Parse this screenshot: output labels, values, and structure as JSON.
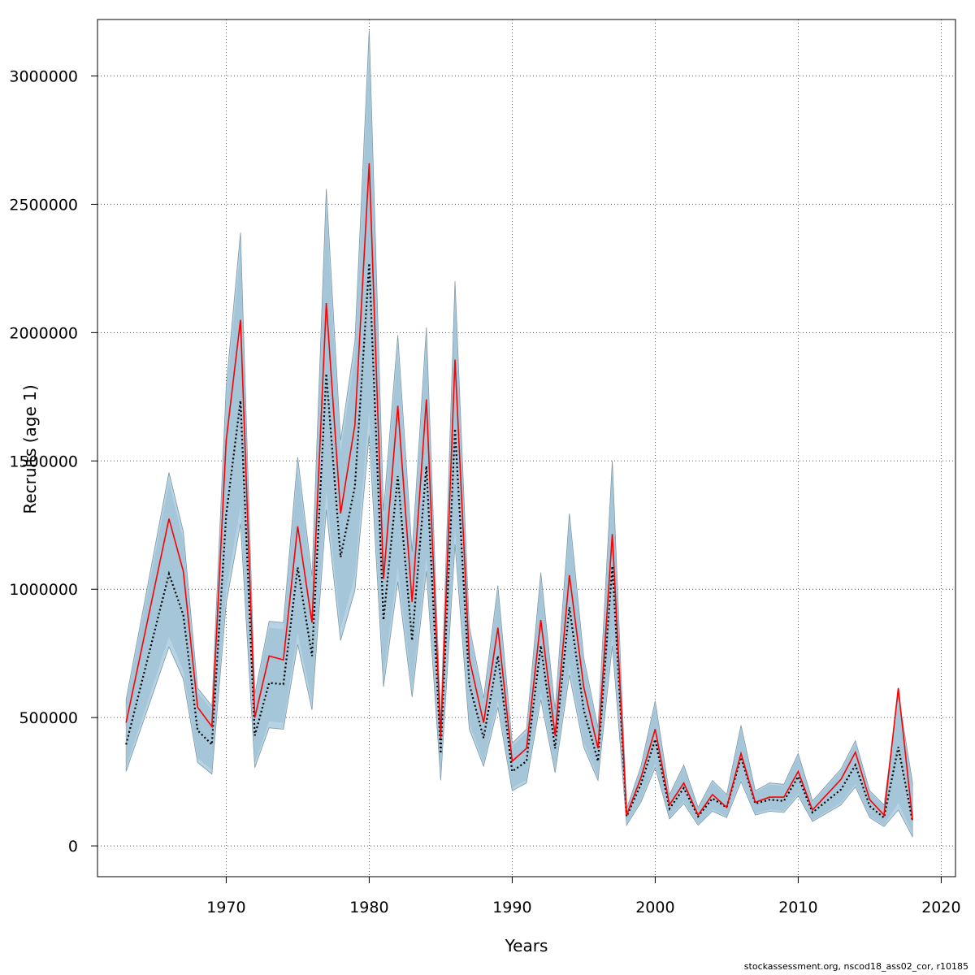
{
  "chart_data": {
    "type": "line",
    "xlabel": "Years",
    "ylabel": "Recruits (age 1)",
    "xlim": [
      1961,
      2021
    ],
    "ylim": [
      -120000,
      3220000
    ],
    "x_ticks": [
      1970,
      1980,
      1990,
      2000,
      2010,
      2020
    ],
    "y_ticks": [
      0,
      500000,
      1000000,
      1500000,
      2000000,
      2500000,
      3000000
    ],
    "grid": true,
    "colors": {
      "band_outer": "#b5d3e4",
      "band_inner": "#a4c6d8",
      "band_edge": "#7f98a6",
      "series_solid": "#ff0000",
      "series_dotted": "#000000"
    },
    "years": [
      1963,
      1966,
      1967,
      1968,
      1969,
      1970,
      1971,
      1972,
      1973,
      1974,
      1975,
      1976,
      1977,
      1978,
      1979,
      1980,
      1981,
      1982,
      1983,
      1984,
      1985,
      1986,
      1987,
      1988,
      1989,
      1990,
      1991,
      1992,
      1993,
      1994,
      1995,
      1996,
      1997,
      1998,
      1999,
      2000,
      2001,
      2002,
      2003,
      2004,
      2005,
      2006,
      2007,
      2008,
      2009,
      2010,
      2011,
      2013,
      2014,
      2015,
      2016,
      2017,
      2018
    ],
    "series": [
      {
        "style": "solid",
        "values": [
          480000,
          1275000,
          1070000,
          540000,
          465000,
          1580000,
          2050000,
          500000,
          740000,
          725000,
          1245000,
          870000,
          2115000,
          1295000,
          1640000,
          2660000,
          1040000,
          1715000,
          950000,
          1740000,
          420000,
          1895000,
          730000,
          480000,
          850000,
          330000,
          380000,
          880000,
          430000,
          1055000,
          620000,
          380000,
          1215000,
          120000,
          265000,
          455000,
          160000,
          245000,
          120000,
          200000,
          150000,
          360000,
          170000,
          190000,
          190000,
          290000,
          140000,
          260000,
          365000,
          180000,
          120000,
          615000,
          100000
        ]
      },
      {
        "style": "dotted",
        "values": [
          395000,
          1060000,
          900000,
          450000,
          395000,
          1290000,
          1735000,
          430000,
          635000,
          630000,
          1085000,
          740000,
          1840000,
          1125000,
          1400000,
          2270000,
          880000,
          1440000,
          800000,
          1480000,
          360000,
          1625000,
          630000,
          420000,
          740000,
          290000,
          330000,
          780000,
          380000,
          930000,
          530000,
          330000,
          1090000,
          115000,
          240000,
          415000,
          145000,
          225000,
          115000,
          185000,
          150000,
          345000,
          165000,
          180000,
          175000,
          270000,
          130000,
          220000,
          315000,
          155000,
          110000,
          385000,
          95000
        ]
      },
      {
        "style": "band",
        "low": [
          290000,
          775000,
          650000,
          325000,
          280000,
          945000,
          1255000,
          305000,
          460000,
          455000,
          785000,
          530000,
          1310000,
          800000,
          995000,
          1600000,
          620000,
          1030000,
          580000,
          1070000,
          255000,
          1175000,
          455000,
          310000,
          540000,
          215000,
          245000,
          570000,
          285000,
          665000,
          385000,
          255000,
          780000,
          80000,
          170000,
          305000,
          105000,
          165000,
          80000,
          135000,
          110000,
          250000,
          120000,
          135000,
          130000,
          195000,
          95000,
          160000,
          230000,
          110000,
          75000,
          140000,
          35000
        ],
        "high": [
          570000,
          1455000,
          1225000,
          615000,
          545000,
          1790000,
          2390000,
          590000,
          875000,
          870000,
          1515000,
          1050000,
          2560000,
          1580000,
          1965000,
          3180000,
          1305000,
          1990000,
          1145000,
          2020000,
          480000,
          2200000,
          855000,
          575000,
          1015000,
          400000,
          455000,
          1065000,
          530000,
          1295000,
          735000,
          460000,
          1500000,
          145000,
          310000,
          565000,
          200000,
          315000,
          150000,
          255000,
          200000,
          470000,
          215000,
          245000,
          240000,
          360000,
          175000,
          300000,
          410000,
          215000,
          160000,
          590000,
          245000
        ]
      }
    ]
  },
  "footer": "stockassessment.org, nscod18_ass02_cor, r10185"
}
